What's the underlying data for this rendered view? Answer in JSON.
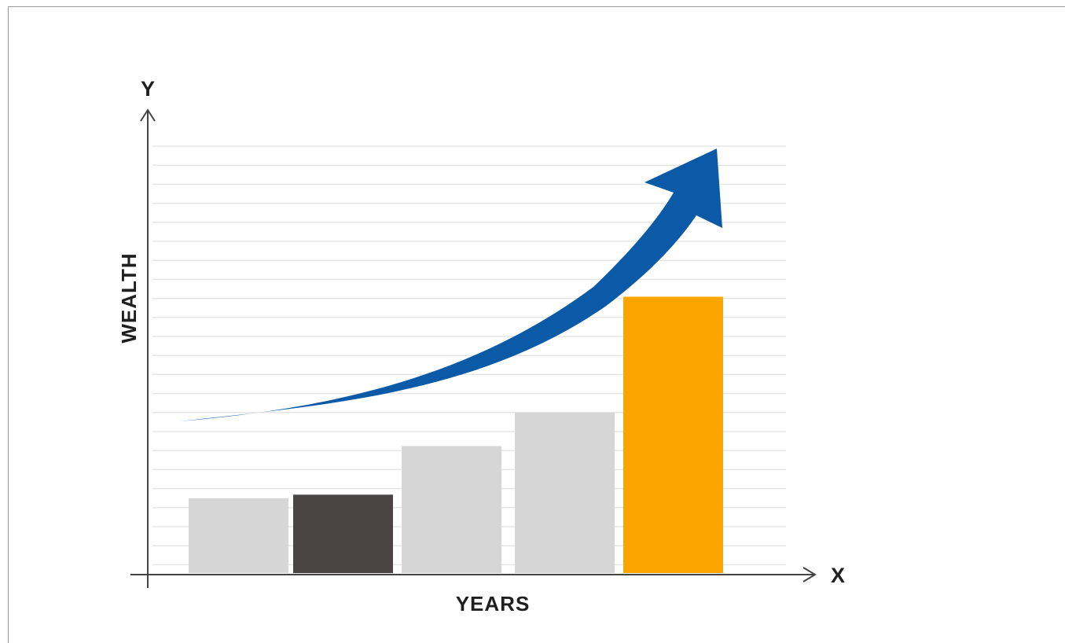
{
  "chart_data": {
    "type": "bar",
    "title": "",
    "xlabel": "YEARS",
    "ylabel": "WEALTH",
    "x_axis_letter": "X",
    "y_axis_letter": "Y",
    "categories": [
      "",
      "",
      "",
      "",
      ""
    ],
    "values": [
      2.0,
      2.1,
      3.4,
      4.3,
      7.4
    ],
    "ylim": [
      0,
      11.5
    ],
    "bar_colors": [
      "#d6d6d6",
      "#4a4544",
      "#d6d6d6",
      "#d6d6d6",
      "#fca400"
    ],
    "grid": true,
    "legend": "none",
    "trend_arrow": {
      "color": "#0a5aa8",
      "direction": "up-right"
    }
  },
  "colors": {
    "gridline": "#e6e6e6",
    "axis": "#444444",
    "axis_text": "#1f1f1f",
    "border": "#9a9a9a"
  }
}
